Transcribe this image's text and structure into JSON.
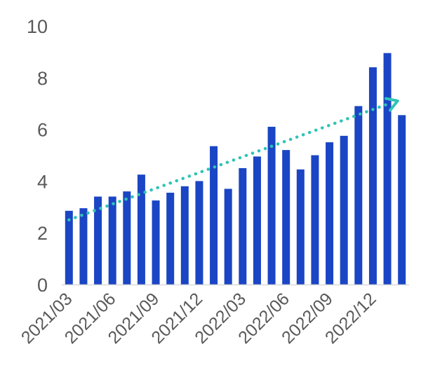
{
  "chart_data": {
    "type": "bar",
    "categories": [
      "2021/03",
      "2021/04",
      "2021/05",
      "2021/06",
      "2021/07",
      "2021/08",
      "2021/09",
      "2021/10",
      "2021/11",
      "2021/12",
      "2022/01",
      "2022/02",
      "2022/03",
      "2022/04",
      "2022/05",
      "2022/06",
      "2022/07",
      "2022/08",
      "2022/09",
      "2022/10",
      "2022/11",
      "2022/12",
      "2023/01",
      "2023/02"
    ],
    "tick_labels": [
      "2021/03",
      "2021/06",
      "2021/09",
      "2021/12",
      "2022/03",
      "2022/06",
      "2022/09",
      "2022/12"
    ],
    "values": [
      2.85,
      2.95,
      3.4,
      3.4,
      3.6,
      4.25,
      3.25,
      3.55,
      3.8,
      4.0,
      5.35,
      3.7,
      4.5,
      4.95,
      6.1,
      5.2,
      4.45,
      5.0,
      5.5,
      5.75,
      6.9,
      8.4,
      8.95,
      6.55
    ],
    "yticks": [
      "0",
      "2",
      "4",
      "6",
      "8",
      "10"
    ],
    "ylim": [
      0,
      10
    ],
    "trendline": {
      "style": "dotted",
      "from": 2.5,
      "to": 7.1
    },
    "colors": {
      "bar": "#1a45c4",
      "trend": "#2ec4b6",
      "axis": "#d9d9d9",
      "text": "#595959"
    },
    "title": "",
    "xlabel": "",
    "ylabel": "",
    "grid": false,
    "legend": "none"
  }
}
